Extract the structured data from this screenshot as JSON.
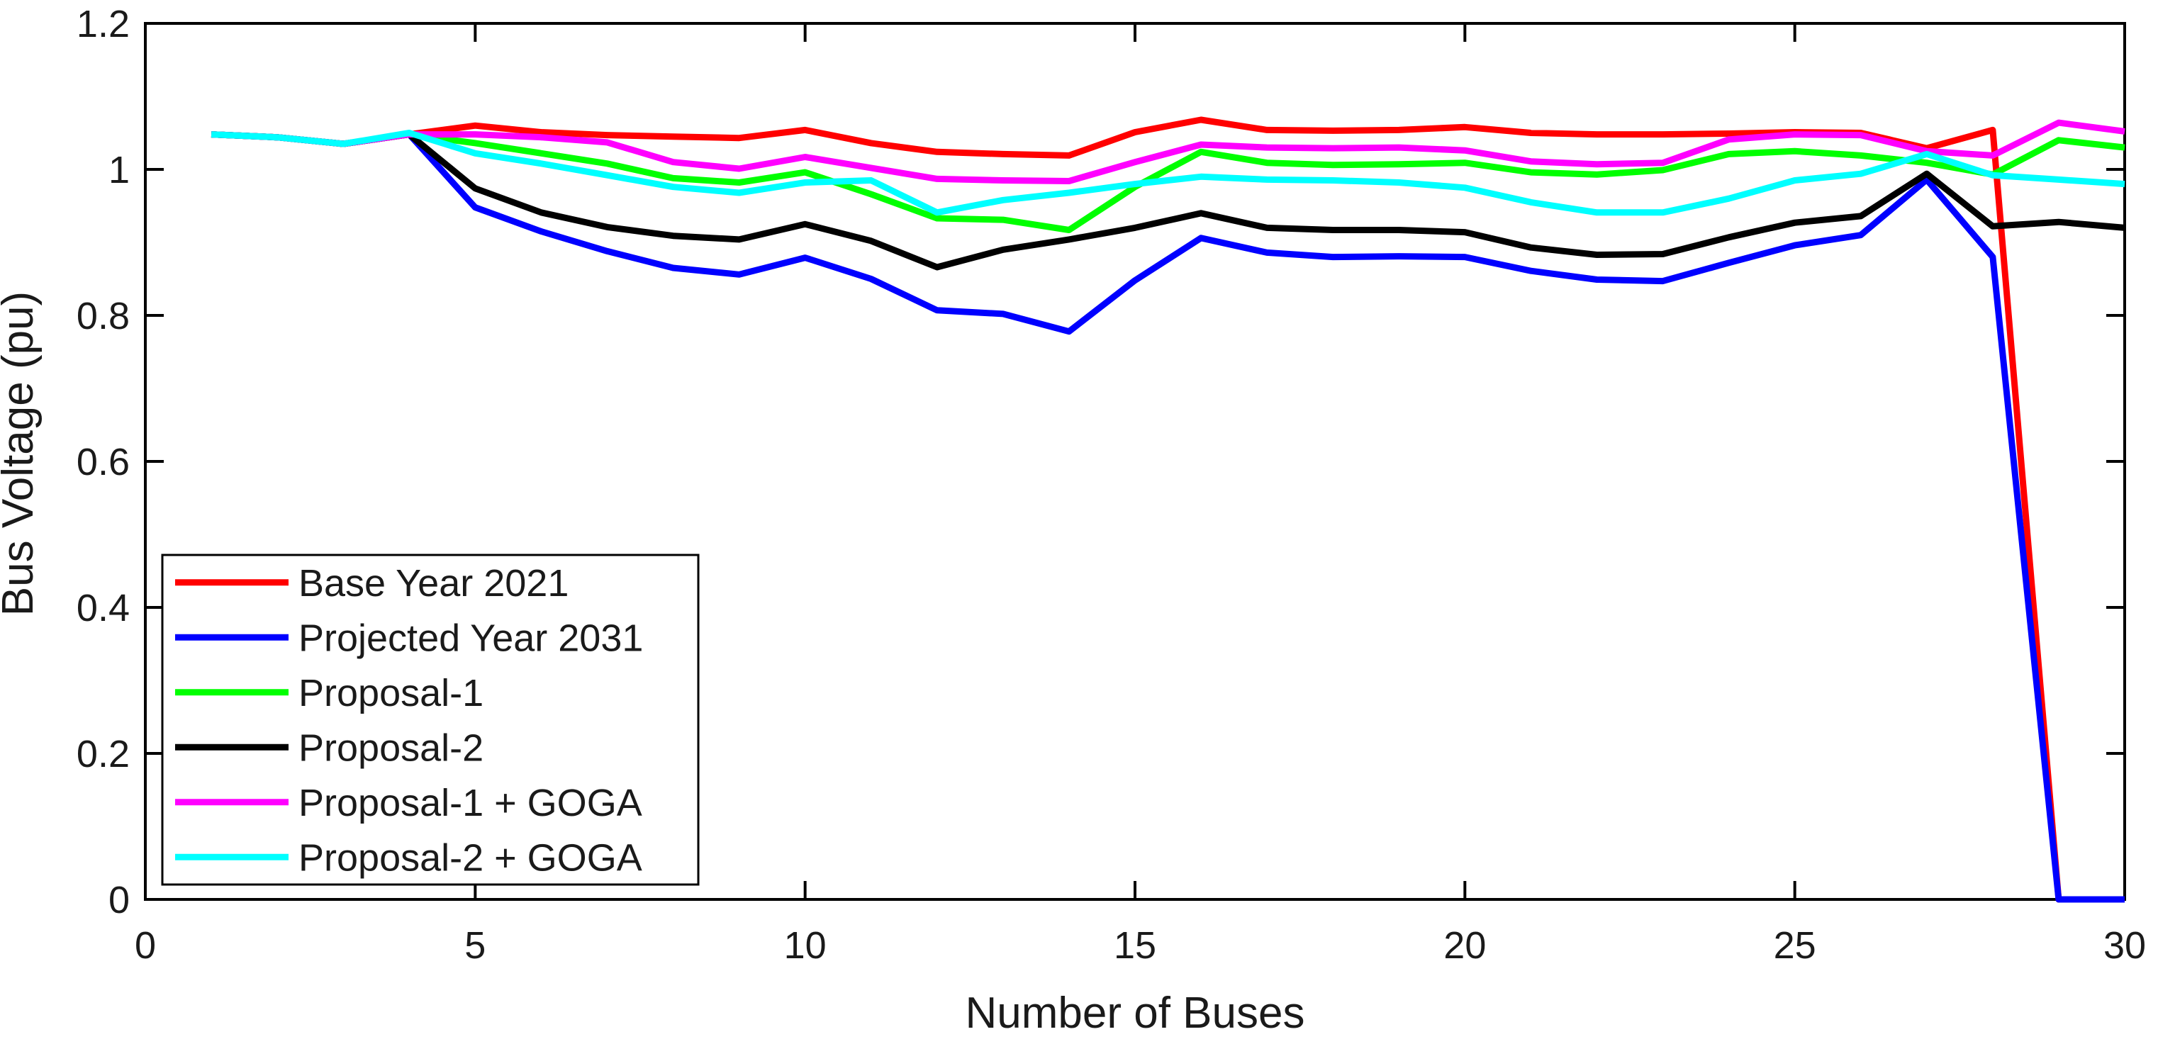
{
  "figure": {
    "background": "#ffffff",
    "axis_color": "#000000"
  },
  "chart_data": {
    "type": "line",
    "title": "",
    "xlabel": "Number of Buses",
    "ylabel": "Bus Voltage (pu)",
    "xlim": [
      0,
      30
    ],
    "ylim": [
      0,
      1.2
    ],
    "xticks": [
      0,
      5,
      10,
      15,
      20,
      25,
      30
    ],
    "xtick_labels": [
      "0",
      "5",
      "10",
      "15",
      "20",
      "25",
      "30"
    ],
    "yticks": [
      0,
      0.2,
      0.4,
      0.6,
      0.8,
      1,
      1.2
    ],
    "ytick_labels": [
      "0",
      "0.2",
      "0.4",
      "0.6",
      "0.8",
      "1",
      "1.2"
    ],
    "grid": false,
    "legend_position": "inside-lower-left",
    "x": [
      1,
      2,
      3,
      4,
      5,
      6,
      7,
      8,
      9,
      10,
      11,
      12,
      13,
      14,
      15,
      16,
      17,
      18,
      19,
      20,
      21,
      22,
      23,
      24,
      25,
      26,
      27,
      28,
      29,
      30
    ],
    "series": [
      {
        "name": "Base Year 2021",
        "color": "#ff0000",
        "values": [
          1.048,
          1.044,
          1.035,
          1.048,
          1.06,
          1.051,
          1.047,
          1.045,
          1.043,
          1.054,
          1.036,
          1.024,
          1.021,
          1.019,
          1.051,
          1.068,
          1.054,
          1.053,
          1.054,
          1.058,
          1.05,
          1.048,
          1.048,
          1.049,
          1.051,
          1.05,
          1.029,
          1.054,
          0,
          0
        ]
      },
      {
        "name": "Projected Year 2031",
        "color": "#0000ff",
        "values": [
          1.048,
          1.044,
          1.035,
          1.048,
          0.948,
          0.915,
          0.888,
          0.865,
          0.856,
          0.879,
          0.85,
          0.807,
          0.802,
          0.778,
          0.848,
          0.906,
          0.886,
          0.88,
          0.881,
          0.88,
          0.861,
          0.849,
          0.847,
          0.872,
          0.896,
          0.91,
          0.986,
          0.88,
          0,
          0
        ]
      },
      {
        "name": "Proposal-1",
        "color": "#00ff00",
        "values": [
          1.048,
          1.044,
          1.035,
          1.048,
          1.036,
          1.022,
          1.008,
          0.988,
          0.982,
          0.996,
          0.966,
          0.933,
          0.931,
          0.917,
          0.976,
          1.024,
          1.009,
          1.006,
          1.007,
          1.009,
          0.996,
          0.993,
          0.999,
          1.021,
          1.025,
          1.019,
          1.009,
          0.993,
          1.04,
          1.03
        ]
      },
      {
        "name": "Proposal-2",
        "color": "#000000",
        "values": [
          1.048,
          1.044,
          1.035,
          1.048,
          0.974,
          0.941,
          0.921,
          0.909,
          0.904,
          0.925,
          0.902,
          0.866,
          0.89,
          0.904,
          0.92,
          0.94,
          0.92,
          0.917,
          0.917,
          0.914,
          0.893,
          0.883,
          0.884,
          0.907,
          0.927,
          0.936,
          0.994,
          0.922,
          0.928,
          0.92
        ]
      },
      {
        "name": "Proposal-1 + GOGA",
        "color": "#ff00ff",
        "values": [
          1.048,
          1.044,
          1.035,
          1.048,
          1.048,
          1.044,
          1.037,
          1.01,
          1.001,
          1.017,
          1.002,
          0.987,
          0.985,
          0.984,
          1.01,
          1.034,
          1.03,
          1.029,
          1.03,
          1.026,
          1.011,
          1.007,
          1.009,
          1.041,
          1.048,
          1.047,
          1.025,
          1.019,
          1.064,
          1.052
        ]
      },
      {
        "name": "Proposal-2 + GOGA",
        "color": "#00ffff",
        "values": [
          1.048,
          1.044,
          1.035,
          1.05,
          1.022,
          1.008,
          0.992,
          0.976,
          0.968,
          0.982,
          0.985,
          0.941,
          0.958,
          0.968,
          0.98,
          0.99,
          0.986,
          0.985,
          0.982,
          0.975,
          0.955,
          0.941,
          0.941,
          0.96,
          0.985,
          0.994,
          1.021,
          0.992,
          0.986,
          0.98
        ]
      }
    ],
    "legend_entries": [
      "Base Year 2021",
      "Projected Year 2031",
      "Proposal-1",
      "Proposal-2",
      "Proposal-1 + GOGA",
      "Proposal-2 + GOGA"
    ]
  }
}
